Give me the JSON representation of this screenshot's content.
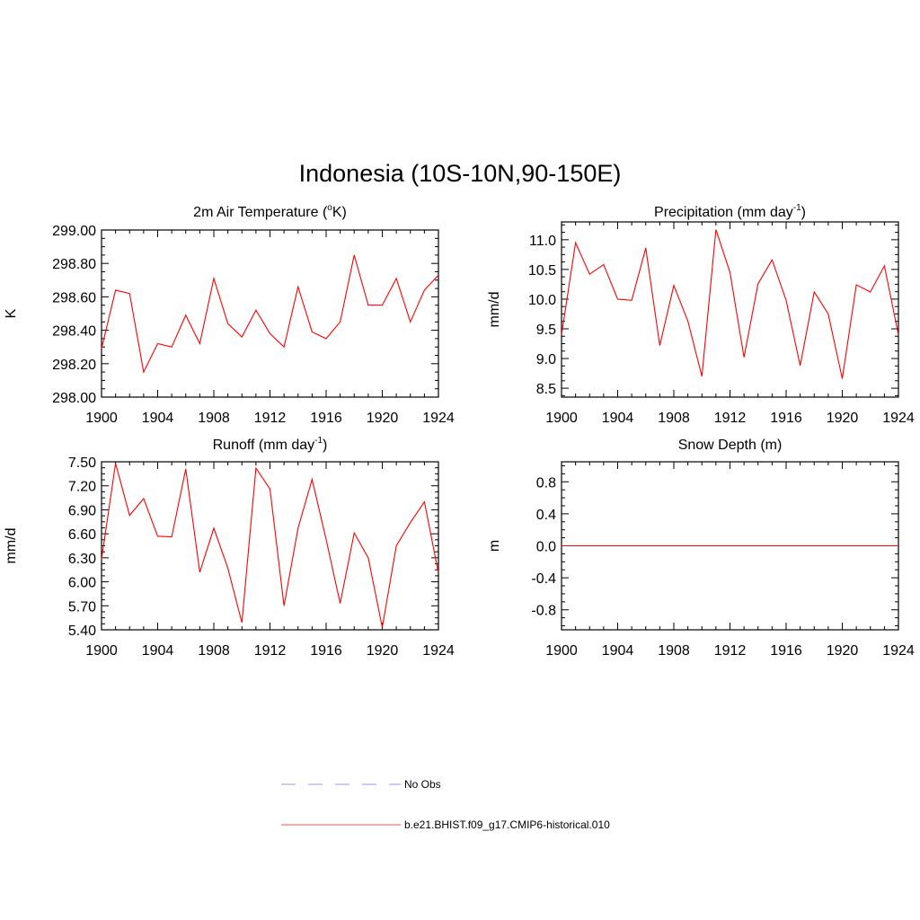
{
  "figure": {
    "title": "Indonesia (10S-10N,90-150E)"
  },
  "chart_data": [
    {
      "type": "line",
      "title_main": "2m Air Temperature (",
      "title_sup": "o",
      "title_end": "K)",
      "ylabel": "K",
      "xlim": [
        1900,
        1924
      ],
      "ylim": [
        298.0,
        299.0
      ],
      "xticks": [
        "1900",
        "1904",
        "1908",
        "1912",
        "1916",
        "1920",
        "1924"
      ],
      "yticks": [
        "298.00",
        "298.20",
        "298.40",
        "298.60",
        "298.80",
        "299.00"
      ],
      "series": [
        {
          "color": "#ff0000",
          "x": [
            1900,
            1901,
            1902,
            1903,
            1904,
            1905,
            1906,
            1907,
            1908,
            1909,
            1910,
            1911,
            1912,
            1913,
            1914,
            1915,
            1916,
            1917,
            1918,
            1919,
            1920,
            1921,
            1922,
            1923,
            1924
          ],
          "values": [
            298.29,
            298.64,
            298.62,
            298.15,
            298.32,
            298.3,
            298.49,
            298.32,
            298.71,
            298.44,
            298.36,
            298.52,
            298.38,
            298.3,
            298.66,
            298.39,
            298.35,
            298.45,
            298.85,
            298.55,
            298.55,
            298.71,
            298.45,
            298.64,
            298.73
          ]
        }
      ]
    },
    {
      "type": "line",
      "title_main": "Precipitation (mm day",
      "title_sup": "-1",
      "title_end": ")",
      "ylabel": "mm/d",
      "xlim": [
        1900,
        1924
      ],
      "ylim": [
        8.35,
        11.3
      ],
      "xticks": [
        "1900",
        "1904",
        "1908",
        "1912",
        "1916",
        "1920",
        "1924"
      ],
      "yticks": [
        "8.5",
        "9.0",
        "9.5",
        "10.0",
        "10.5",
        "11.0"
      ],
      "series": [
        {
          "color": "#ff0000",
          "x": [
            1900,
            1901,
            1902,
            1903,
            1904,
            1905,
            1906,
            1907,
            1908,
            1909,
            1910,
            1911,
            1912,
            1913,
            1914,
            1915,
            1916,
            1917,
            1918,
            1919,
            1920,
            1921,
            1922,
            1923,
            1924
          ],
          "values": [
            9.4,
            10.95,
            10.42,
            10.58,
            10.0,
            9.98,
            10.86,
            9.22,
            10.23,
            9.63,
            8.7,
            11.17,
            10.45,
            9.02,
            10.26,
            10.66,
            9.98,
            8.88,
            10.12,
            9.75,
            8.66,
            10.24,
            10.12,
            10.56,
            9.4
          ]
        }
      ]
    },
    {
      "type": "line",
      "title_main": "Runoff (mm day",
      "title_sup": "-1",
      "title_end": ")",
      "ylabel": "mm/d",
      "xlim": [
        1900,
        1924
      ],
      "ylim": [
        5.4,
        7.5
      ],
      "xticks": [
        "1900",
        "1904",
        "1908",
        "1912",
        "1916",
        "1920",
        "1924"
      ],
      "yticks": [
        "5.40",
        "5.70",
        "6.00",
        "6.30",
        "6.60",
        "6.90",
        "7.20",
        "7.50"
      ],
      "series": [
        {
          "color": "#ff0000",
          "x": [
            1900,
            1901,
            1902,
            1903,
            1904,
            1905,
            1906,
            1907,
            1908,
            1909,
            1910,
            1911,
            1912,
            1913,
            1914,
            1915,
            1916,
            1917,
            1918,
            1919,
            1920,
            1921,
            1922,
            1923,
            1924
          ],
          "values": [
            6.28,
            7.48,
            6.83,
            7.04,
            6.57,
            6.56,
            7.41,
            6.12,
            6.67,
            6.17,
            5.49,
            7.42,
            7.16,
            5.7,
            6.67,
            7.28,
            6.53,
            5.73,
            6.61,
            6.3,
            5.43,
            6.45,
            6.74,
            7.0,
            6.11
          ]
        }
      ]
    },
    {
      "type": "line",
      "title_main": "Snow Depth (m)",
      "title_sup": "",
      "title_end": "",
      "ylabel": "m",
      "xlim": [
        1900,
        1924
      ],
      "ylim": [
        -1.05,
        1.05
      ],
      "xticks": [
        "1900",
        "1904",
        "1908",
        "1912",
        "1916",
        "1920",
        "1924"
      ],
      "yticks": [
        "-0.8",
        "-0.4",
        "0.0",
        "0.4",
        "0.8"
      ],
      "series": [
        {
          "color": "#ff0000",
          "x": [
            1900,
            1924
          ],
          "values": [
            0.0,
            0.0
          ]
        }
      ]
    }
  ],
  "legend": {
    "items": [
      {
        "label": "No Obs",
        "color": "#aaaaff",
        "style": "dashed"
      },
      {
        "label": "b.e21.BHIST.f09_g17.CMIP6-historical.010",
        "color": "#ff7777",
        "style": "solid"
      }
    ]
  }
}
